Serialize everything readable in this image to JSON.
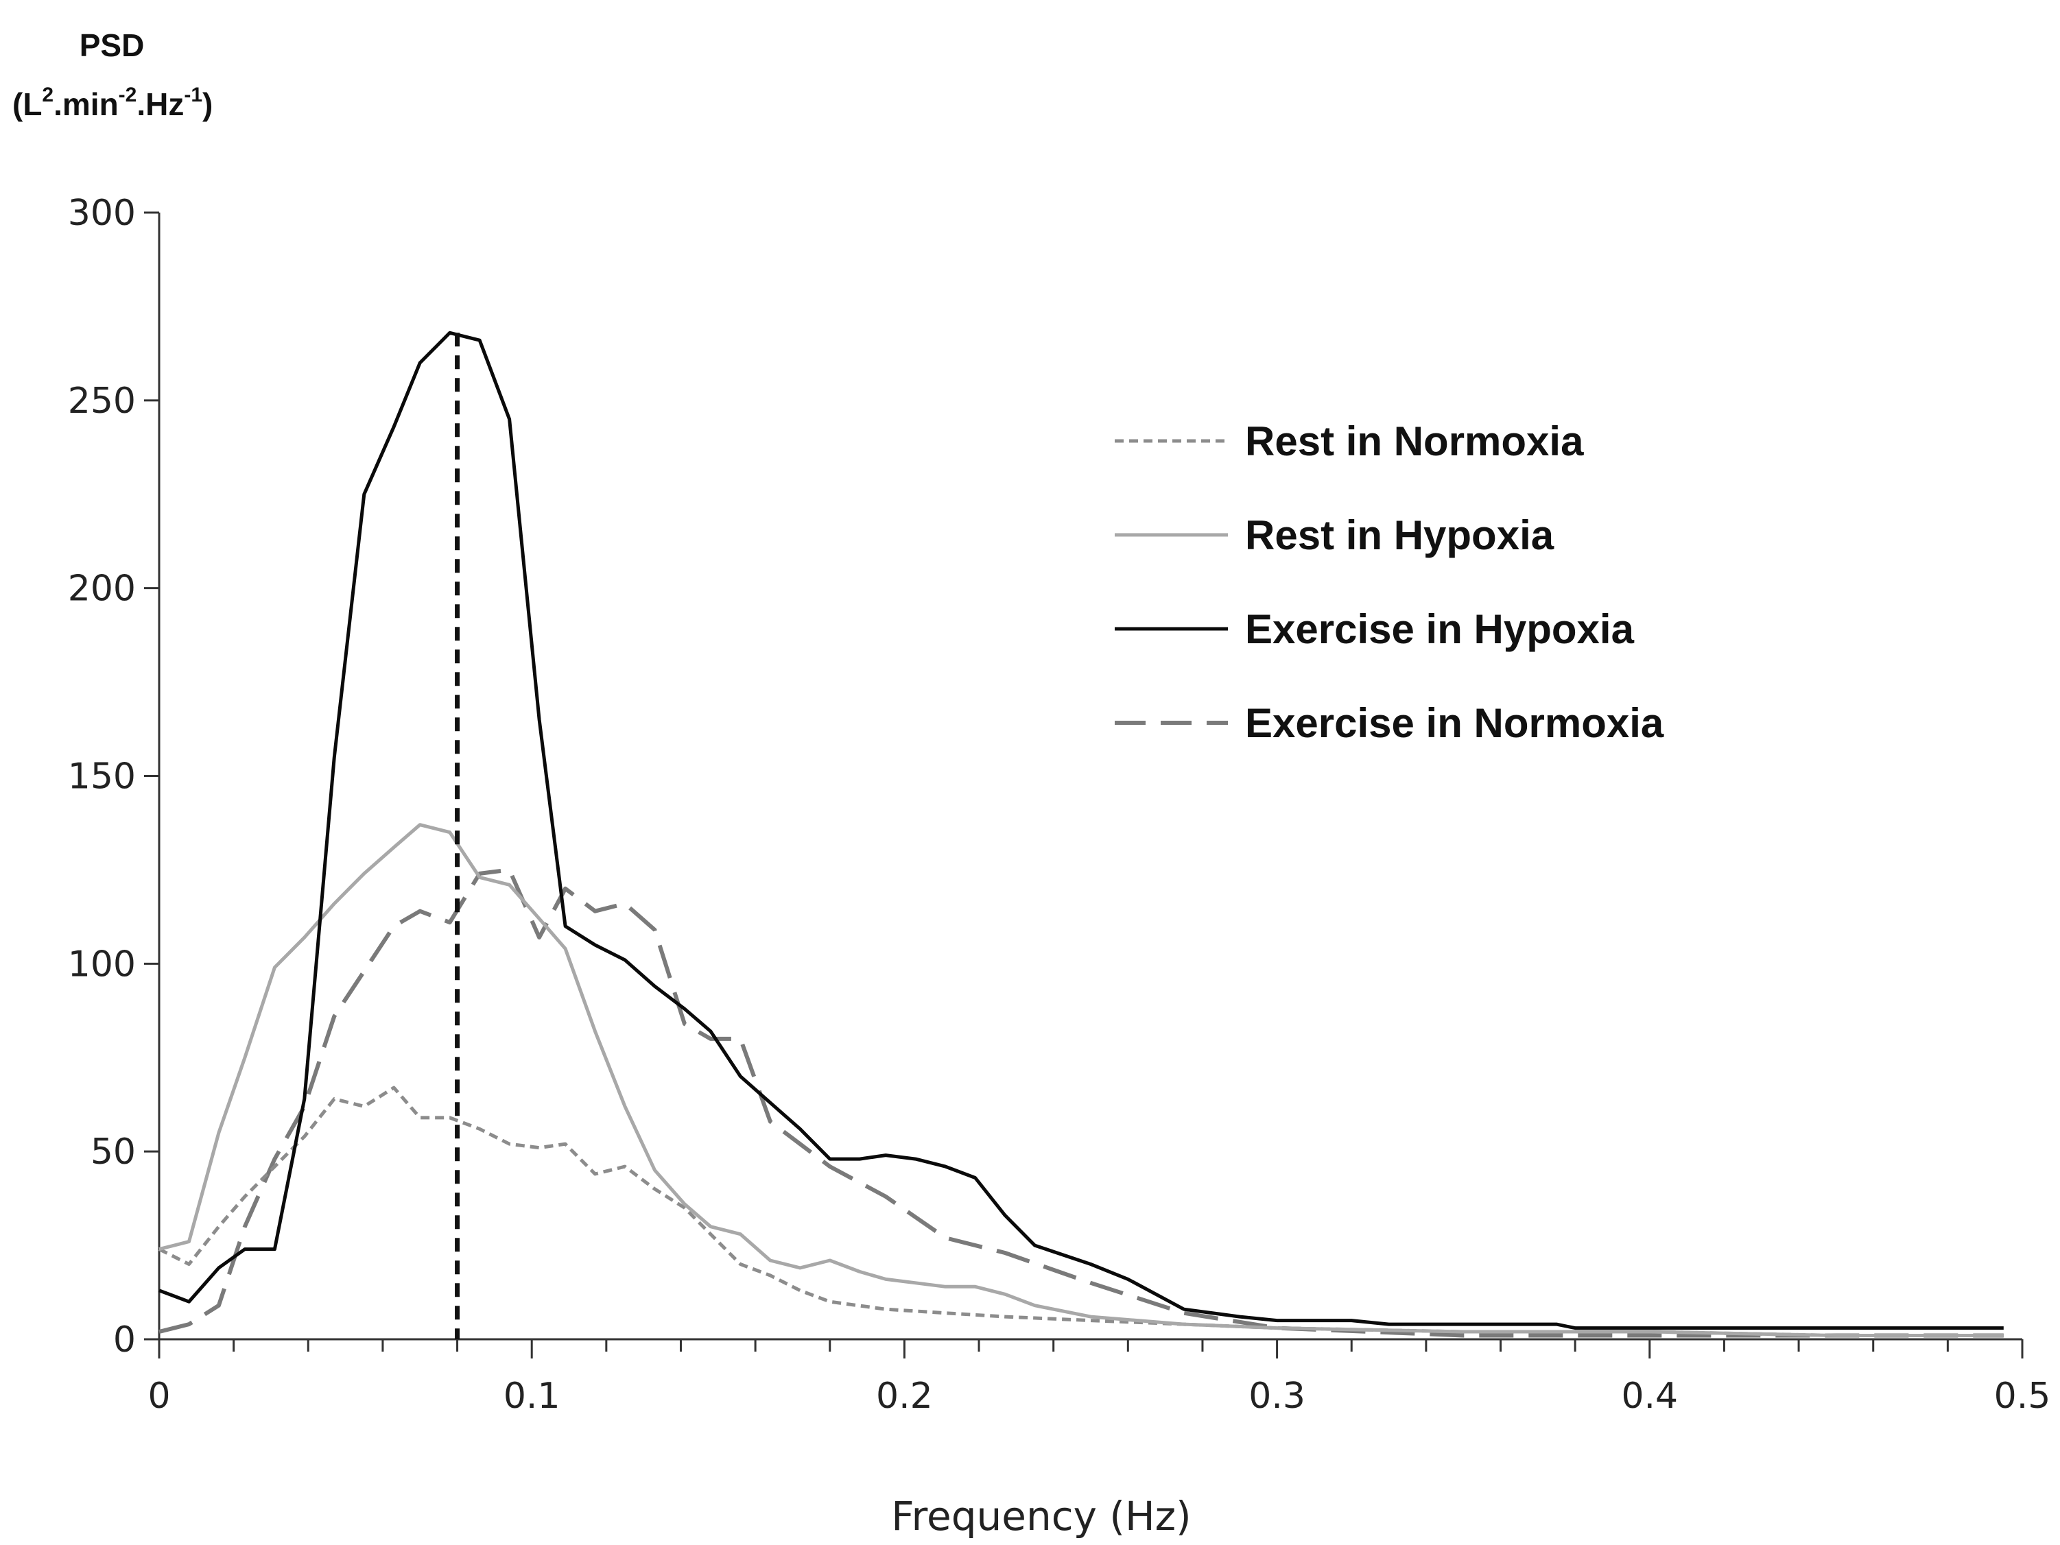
{
  "chart_data": {
    "type": "line",
    "title": "",
    "ylabel_line1": "PSD",
    "ylabel_units": {
      "prefix": "(L",
      "sup1": "2",
      "mid": ".min",
      "sup2": "-2",
      "mid2": ".Hz",
      "sup3": "-1",
      "suffix": ")"
    },
    "xlabel": "Frequency  (Hz)",
    "xlim": [
      0,
      0.5
    ],
    "ylim": [
      0,
      300
    ],
    "xticks": [
      0,
      0.1,
      0.2,
      0.3,
      0.4,
      0.5
    ],
    "xtick_labels": [
      "0",
      "0.1",
      "0.2",
      "0.3",
      "0.4",
      "0.5"
    ],
    "yticks": [
      0,
      50,
      100,
      150,
      200,
      250,
      300
    ],
    "ytick_labels": [
      "0",
      "50",
      "100",
      "150",
      "200",
      "250",
      "300"
    ],
    "legend_position": "top-right",
    "vertical_marker": {
      "x": 0.08,
      "y_top": 268,
      "style": "dashed",
      "color": "#111111"
    },
    "series": [
      {
        "name": "Rest in Normoxia",
        "style": "dotted",
        "color": "#8c8c8c",
        "x": [
          0,
          0.008,
          0.016,
          0.023,
          0.031,
          0.039,
          0.047,
          0.055,
          0.063,
          0.07,
          0.078,
          0.086,
          0.094,
          0.102,
          0.109,
          0.117,
          0.125,
          0.133,
          0.141,
          0.148,
          0.156,
          0.164,
          0.172,
          0.18,
          0.195,
          0.211,
          0.227,
          0.25,
          0.275,
          0.3,
          0.35,
          0.4,
          0.45,
          0.495
        ],
        "y": [
          24,
          20,
          30,
          38,
          46,
          54,
          64,
          62,
          67,
          59,
          59,
          56,
          52,
          51,
          52,
          44,
          46,
          40,
          35,
          28,
          20,
          17,
          13,
          10,
          8,
          7,
          6,
          5,
          4,
          3,
          2,
          2,
          1,
          1
        ]
      },
      {
        "name": "Rest in Hypoxia",
        "style": "solid",
        "color": "#a8a8a8",
        "x": [
          0,
          0.008,
          0.016,
          0.023,
          0.031,
          0.039,
          0.047,
          0.055,
          0.063,
          0.07,
          0.078,
          0.086,
          0.094,
          0.102,
          0.109,
          0.117,
          0.125,
          0.133,
          0.141,
          0.148,
          0.156,
          0.164,
          0.172,
          0.18,
          0.188,
          0.195,
          0.203,
          0.211,
          0.219,
          0.227,
          0.235,
          0.25,
          0.275,
          0.3,
          0.35,
          0.4,
          0.45,
          0.495
        ],
        "y": [
          24,
          26,
          55,
          75,
          99,
          107,
          116,
          124,
          131,
          137,
          135,
          123,
          121,
          112,
          104,
          82,
          62,
          45,
          36,
          30,
          28,
          21,
          19,
          21,
          18,
          16,
          15,
          14,
          14,
          12,
          9,
          6,
          4,
          3,
          2,
          2,
          1,
          1
        ]
      },
      {
        "name": "Exercise in Hypoxia",
        "style": "solid",
        "color": "#0a0a0a",
        "x": [
          0,
          0.008,
          0.016,
          0.023,
          0.027,
          0.031,
          0.039,
          0.047,
          0.055,
          0.063,
          0.07,
          0.078,
          0.086,
          0.094,
          0.102,
          0.109,
          0.117,
          0.125,
          0.133,
          0.141,
          0.148,
          0.156,
          0.164,
          0.172,
          0.18,
          0.188,
          0.195,
          0.203,
          0.211,
          0.219,
          0.227,
          0.235,
          0.25,
          0.26,
          0.275,
          0.29,
          0.3,
          0.31,
          0.32,
          0.33,
          0.34,
          0.35,
          0.36,
          0.37,
          0.375,
          0.38,
          0.39,
          0.4,
          0.41,
          0.42,
          0.44,
          0.46,
          0.48,
          0.495
        ],
        "y": [
          13,
          10,
          19,
          24,
          24,
          24,
          64,
          155,
          225,
          243,
          260,
          268,
          266,
          245,
          165,
          110,
          105,
          101,
          94,
          88,
          82,
          70,
          63,
          56,
          48,
          48,
          49,
          48,
          46,
          43,
          33,
          25,
          20,
          16,
          8,
          6,
          5,
          5,
          5,
          4,
          4,
          4,
          4,
          4,
          4,
          3,
          3,
          3,
          3,
          3,
          3,
          3,
          3,
          3
        ]
      },
      {
        "name": "Exercise in Normoxia",
        "style": "dashed",
        "color": "#7a7a7a",
        "x": [
          0,
          0.008,
          0.016,
          0.023,
          0.031,
          0.039,
          0.047,
          0.055,
          0.063,
          0.07,
          0.078,
          0.086,
          0.094,
          0.102,
          0.109,
          0.117,
          0.125,
          0.133,
          0.141,
          0.148,
          0.156,
          0.164,
          0.172,
          0.18,
          0.195,
          0.211,
          0.227,
          0.25,
          0.275,
          0.3,
          0.35,
          0.4,
          0.45,
          0.495
        ],
        "y": [
          2,
          4,
          9,
          30,
          48,
          62,
          86,
          98,
          110,
          114,
          111,
          124,
          125,
          107,
          120,
          114,
          116,
          109,
          84,
          80,
          80,
          58,
          52,
          46,
          38,
          27,
          23,
          15,
          7,
          3,
          1,
          1,
          1,
          1
        ]
      }
    ]
  }
}
